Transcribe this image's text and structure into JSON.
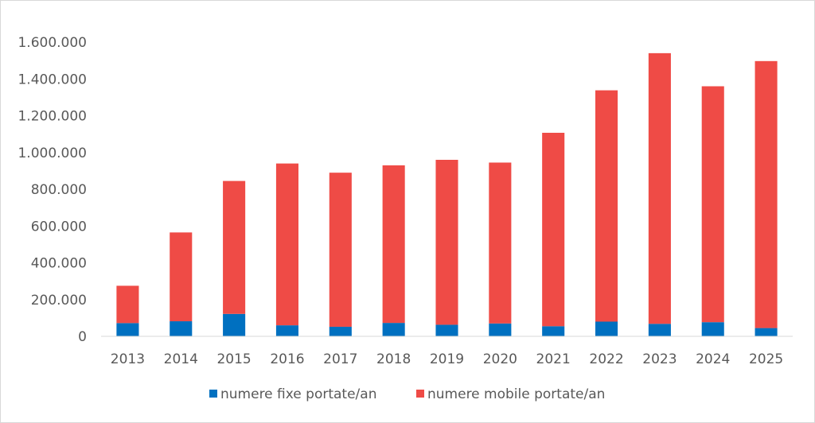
{
  "chart_data": {
    "type": "bar",
    "stacked": true,
    "title": "",
    "xlabel": "",
    "ylabel": "",
    "categories": [
      "2013",
      "2014",
      "2015",
      "2016",
      "2017",
      "2018",
      "2019",
      "2020",
      "2021",
      "2022",
      "2023",
      "2024",
      "2025"
    ],
    "series": [
      {
        "name": "numere fixe portate/an",
        "color": "#0070c0",
        "values": [
          72000,
          82000,
          122000,
          60000,
          52000,
          73000,
          63000,
          70000,
          55000,
          80000,
          68000,
          77000,
          45000
        ]
      },
      {
        "name": "numere mobile portate/an",
        "color": "#ef4b46",
        "values": [
          203000,
          483000,
          723000,
          880000,
          838000,
          857000,
          897000,
          875000,
          1052000,
          1258000,
          1472000,
          1283000,
          1452000
        ]
      }
    ],
    "ylim": [
      0,
      1600000
    ],
    "yticks": [
      "0",
      "200.000",
      "400.000",
      "600.000",
      "800.000",
      "1.000.000",
      "1.200.000",
      "1.400.000",
      "1.600.000"
    ],
    "grid": false,
    "legend_position": "bottom"
  }
}
